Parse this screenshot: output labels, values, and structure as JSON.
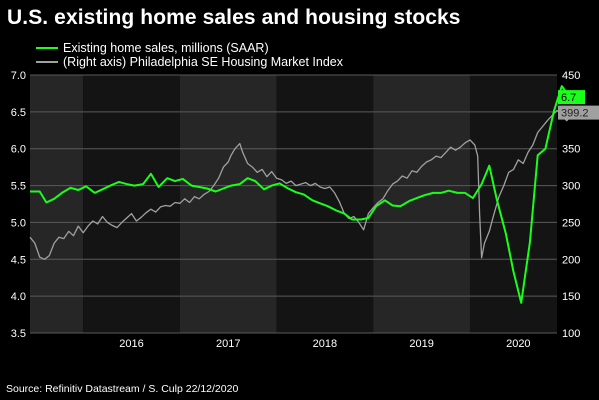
{
  "title": "U.S. existing home sales and housing stocks",
  "source": "Source: Refinitiv Datastream / S. Culp 22/12/2020",
  "colors": {
    "background": "#000000",
    "band_dark": "#141414",
    "band_light": "#262626",
    "grid": "#5a5a5a",
    "sales": "#1aff1a",
    "index": "#a0a0a0"
  },
  "chart_data": {
    "type": "line",
    "title": "U.S. existing home sales and housing stocks",
    "x_tick_labels": [
      "2016",
      "2017",
      "2018",
      "2019",
      "2020"
    ],
    "x_range": [
      2015.45,
      2020.9
    ],
    "legend_position": "top-left",
    "grid": true,
    "y_left": {
      "range": [
        3.5,
        7.0
      ],
      "ticks": [
        "3.5",
        "4.0",
        "4.5",
        "5.0",
        "5.5",
        "6.0",
        "6.5",
        "7.0"
      ]
    },
    "y_right": {
      "range": [
        100,
        450
      ],
      "ticks": [
        "100",
        "150",
        "200",
        "250",
        "300",
        "350",
        "400",
        "450"
      ]
    },
    "series": [
      {
        "name": "Existing home sales, millions (SAAR)",
        "axis": "left",
        "color": "#1aff1a",
        "last_value_label": "6.7",
        "points": [
          [
            2015.45,
            5.42
          ],
          [
            2015.55,
            5.42
          ],
          [
            2015.62,
            5.27
          ],
          [
            2015.7,
            5.32
          ],
          [
            2015.78,
            5.4
          ],
          [
            2015.87,
            5.47
          ],
          [
            2015.95,
            5.44
          ],
          [
            2016.03,
            5.49
          ],
          [
            2016.12,
            5.4
          ],
          [
            2016.2,
            5.45
          ],
          [
            2016.28,
            5.5
          ],
          [
            2016.37,
            5.55
          ],
          [
            2016.45,
            5.52
          ],
          [
            2016.53,
            5.5
          ],
          [
            2016.62,
            5.52
          ],
          [
            2016.7,
            5.66
          ],
          [
            2016.78,
            5.48
          ],
          [
            2016.87,
            5.6
          ],
          [
            2016.95,
            5.56
          ],
          [
            2017.03,
            5.59
          ],
          [
            2017.12,
            5.5
          ],
          [
            2017.2,
            5.48
          ],
          [
            2017.28,
            5.46
          ],
          [
            2017.37,
            5.42
          ],
          [
            2017.45,
            5.46
          ],
          [
            2017.53,
            5.5
          ],
          [
            2017.62,
            5.52
          ],
          [
            2017.7,
            5.6
          ],
          [
            2017.78,
            5.56
          ],
          [
            2017.87,
            5.45
          ],
          [
            2017.95,
            5.5
          ],
          [
            2018.03,
            5.53
          ],
          [
            2018.12,
            5.46
          ],
          [
            2018.2,
            5.41
          ],
          [
            2018.28,
            5.38
          ],
          [
            2018.37,
            5.3
          ],
          [
            2018.45,
            5.26
          ],
          [
            2018.53,
            5.22
          ],
          [
            2018.62,
            5.16
          ],
          [
            2018.7,
            5.12
          ],
          [
            2018.78,
            5.04
          ],
          [
            2018.87,
            5.04
          ],
          [
            2018.95,
            5.06
          ],
          [
            2019.03,
            5.22
          ],
          [
            2019.12,
            5.3
          ],
          [
            2019.2,
            5.23
          ],
          [
            2019.28,
            5.22
          ],
          [
            2019.37,
            5.29
          ],
          [
            2019.45,
            5.33
          ],
          [
            2019.53,
            5.37
          ],
          [
            2019.62,
            5.4
          ],
          [
            2019.7,
            5.4
          ],
          [
            2019.78,
            5.43
          ],
          [
            2019.87,
            5.4
          ],
          [
            2019.95,
            5.4
          ],
          [
            2020.03,
            5.33
          ],
          [
            2020.12,
            5.52
          ],
          [
            2020.2,
            5.77
          ],
          [
            2020.28,
            5.3
          ],
          [
            2020.37,
            4.85
          ],
          [
            2020.45,
            4.33
          ],
          [
            2020.53,
            3.91
          ],
          [
            2020.62,
            4.73
          ],
          [
            2020.7,
            5.91
          ],
          [
            2020.78,
            6.0
          ],
          [
            2020.87,
            6.52
          ],
          [
            2020.95,
            6.85
          ],
          [
            2021.03,
            6.7
          ]
        ]
      },
      {
        "name": "(Right axis) Philadelphia SE Housing Market Index",
        "axis": "right",
        "color": "#a0a0a0",
        "last_value_label": "399.2",
        "points": [
          [
            2015.45,
            230
          ],
          [
            2015.5,
            222
          ],
          [
            2015.55,
            203
          ],
          [
            2015.6,
            200
          ],
          [
            2015.65,
            205
          ],
          [
            2015.7,
            222
          ],
          [
            2015.75,
            230
          ],
          [
            2015.8,
            228
          ],
          [
            2015.85,
            238
          ],
          [
            2015.9,
            232
          ],
          [
            2015.95,
            245
          ],
          [
            2016.0,
            236
          ],
          [
            2016.05,
            245
          ],
          [
            2016.1,
            252
          ],
          [
            2016.15,
            248
          ],
          [
            2016.2,
            258
          ],
          [
            2016.25,
            250
          ],
          [
            2016.3,
            246
          ],
          [
            2016.35,
            243
          ],
          [
            2016.4,
            250
          ],
          [
            2016.45,
            256
          ],
          [
            2016.5,
            262
          ],
          [
            2016.55,
            252
          ],
          [
            2016.6,
            257
          ],
          [
            2016.65,
            263
          ],
          [
            2016.7,
            268
          ],
          [
            2016.75,
            264
          ],
          [
            2016.8,
            271
          ],
          [
            2016.85,
            273
          ],
          [
            2016.9,
            272
          ],
          [
            2016.95,
            277
          ],
          [
            2017.0,
            276
          ],
          [
            2017.05,
            282
          ],
          [
            2017.1,
            277
          ],
          [
            2017.15,
            285
          ],
          [
            2017.2,
            282
          ],
          [
            2017.25,
            288
          ],
          [
            2017.3,
            292
          ],
          [
            2017.35,
            300
          ],
          [
            2017.4,
            310
          ],
          [
            2017.45,
            325
          ],
          [
            2017.5,
            332
          ],
          [
            2017.53,
            341
          ],
          [
            2017.57,
            350
          ],
          [
            2017.62,
            357
          ],
          [
            2017.65,
            345
          ],
          [
            2017.7,
            330
          ],
          [
            2017.75,
            325
          ],
          [
            2017.8,
            318
          ],
          [
            2017.85,
            322
          ],
          [
            2017.9,
            312
          ],
          [
            2017.95,
            319
          ],
          [
            2018.0,
            310
          ],
          [
            2018.05,
            308
          ],
          [
            2018.1,
            303
          ],
          [
            2018.15,
            306
          ],
          [
            2018.2,
            300
          ],
          [
            2018.25,
            302
          ],
          [
            2018.3,
            304
          ],
          [
            2018.35,
            300
          ],
          [
            2018.4,
            303
          ],
          [
            2018.45,
            298
          ],
          [
            2018.5,
            296
          ],
          [
            2018.55,
            298
          ],
          [
            2018.6,
            290
          ],
          [
            2018.65,
            278
          ],
          [
            2018.7,
            262
          ],
          [
            2018.75,
            255
          ],
          [
            2018.8,
            258
          ],
          [
            2018.85,
            250
          ],
          [
            2018.9,
            240
          ],
          [
            2018.95,
            262
          ],
          [
            2019.0,
            270
          ],
          [
            2019.05,
            277
          ],
          [
            2019.1,
            282
          ],
          [
            2019.15,
            293
          ],
          [
            2019.2,
            302
          ],
          [
            2019.25,
            306
          ],
          [
            2019.3,
            313
          ],
          [
            2019.35,
            310
          ],
          [
            2019.4,
            320
          ],
          [
            2019.45,
            318
          ],
          [
            2019.5,
            326
          ],
          [
            2019.55,
            332
          ],
          [
            2019.6,
            335
          ],
          [
            2019.65,
            340
          ],
          [
            2019.7,
            338
          ],
          [
            2019.75,
            345
          ],
          [
            2019.8,
            352
          ],
          [
            2019.85,
            348
          ],
          [
            2019.9,
            352
          ],
          [
            2019.95,
            358
          ],
          [
            2020.0,
            362
          ],
          [
            2020.05,
            355
          ],
          [
            2020.08,
            340
          ],
          [
            2020.1,
            262
          ],
          [
            2020.12,
            202
          ],
          [
            2020.15,
            222
          ],
          [
            2020.2,
            238
          ],
          [
            2020.25,
            262
          ],
          [
            2020.3,
            285
          ],
          [
            2020.35,
            300
          ],
          [
            2020.4,
            318
          ],
          [
            2020.45,
            322
          ],
          [
            2020.5,
            335
          ],
          [
            2020.55,
            330
          ],
          [
            2020.6,
            345
          ],
          [
            2020.65,
            355
          ],
          [
            2020.7,
            372
          ],
          [
            2020.75,
            380
          ],
          [
            2020.8,
            388
          ],
          [
            2020.85,
            395
          ],
          [
            2020.9,
            402
          ],
          [
            2020.95,
            395
          ],
          [
            2021.0,
            388
          ],
          [
            2021.05,
            395
          ],
          [
            2021.1,
            392
          ],
          [
            2021.15,
            399
          ]
        ]
      }
    ]
  }
}
